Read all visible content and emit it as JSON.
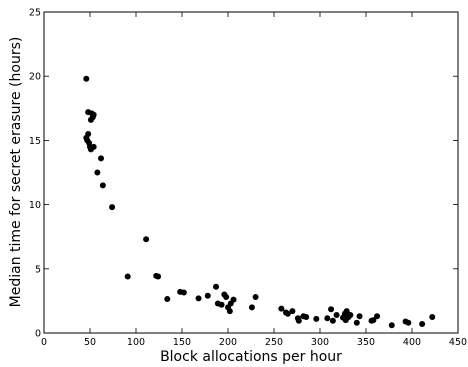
{
  "chart_data": {
    "type": "scatter",
    "title": "",
    "xlabel": "Block allocations per hour",
    "ylabel": "Median time for secret erasure (hours)",
    "xlim": [
      0,
      450
    ],
    "ylim": [
      0,
      25
    ],
    "xticks": [
      0,
      50,
      100,
      150,
      200,
      250,
      300,
      350,
      400,
      450
    ],
    "yticks": [
      0,
      5,
      10,
      15,
      20,
      25
    ],
    "grid": false,
    "legend": "none",
    "marker_color": "#000000",
    "points": [
      [
        46,
        19.8
      ],
      [
        48,
        17.2
      ],
      [
        52,
        17.1
      ],
      [
        54,
        17.0
      ],
      [
        51,
        16.6
      ],
      [
        53,
        16.8
      ],
      [
        46,
        15.2
      ],
      [
        47,
        15.0
      ],
      [
        48,
        15.5
      ],
      [
        49,
        14.8
      ],
      [
        50,
        14.5
      ],
      [
        54,
        14.5
      ],
      [
        51,
        14.3
      ],
      [
        58,
        12.5
      ],
      [
        62,
        13.6
      ],
      [
        64,
        11.5
      ],
      [
        74,
        9.8
      ],
      [
        111,
        7.3
      ],
      [
        91,
        4.4
      ],
      [
        122,
        4.45
      ],
      [
        124,
        4.4
      ],
      [
        134,
        2.65
      ],
      [
        148,
        3.2
      ],
      [
        152,
        3.15
      ],
      [
        168,
        2.7
      ],
      [
        178,
        2.9
      ],
      [
        187,
        3.6
      ],
      [
        189,
        2.3
      ],
      [
        193,
        2.2
      ],
      [
        196,
        3.0
      ],
      [
        198,
        2.8
      ],
      [
        200,
        2.0
      ],
      [
        203,
        2.3
      ],
      [
        206,
        2.6
      ],
      [
        202,
        1.7
      ],
      [
        226,
        2.0
      ],
      [
        230,
        2.8
      ],
      [
        258,
        1.9
      ],
      [
        263,
        1.6
      ],
      [
        265,
        1.5
      ],
      [
        270,
        1.7
      ],
      [
        276,
        1.15
      ],
      [
        277,
        0.95
      ],
      [
        282,
        1.3
      ],
      [
        285,
        1.25
      ],
      [
        296,
        1.1
      ],
      [
        308,
        1.15
      ],
      [
        312,
        1.85
      ],
      [
        314,
        0.95
      ],
      [
        318,
        1.4
      ],
      [
        325,
        1.2
      ],
      [
        327,
        1.5
      ],
      [
        329,
        1.7
      ],
      [
        331,
        1.25
      ],
      [
        333,
        1.4
      ],
      [
        328,
        1.0
      ],
      [
        340,
        0.8
      ],
      [
        343,
        1.3
      ],
      [
        356,
        0.95
      ],
      [
        358,
        1.0
      ],
      [
        362,
        1.3
      ],
      [
        378,
        0.6
      ],
      [
        393,
        0.9
      ],
      [
        396,
        0.8
      ],
      [
        411,
        0.7
      ],
      [
        422,
        1.25
      ]
    ]
  }
}
